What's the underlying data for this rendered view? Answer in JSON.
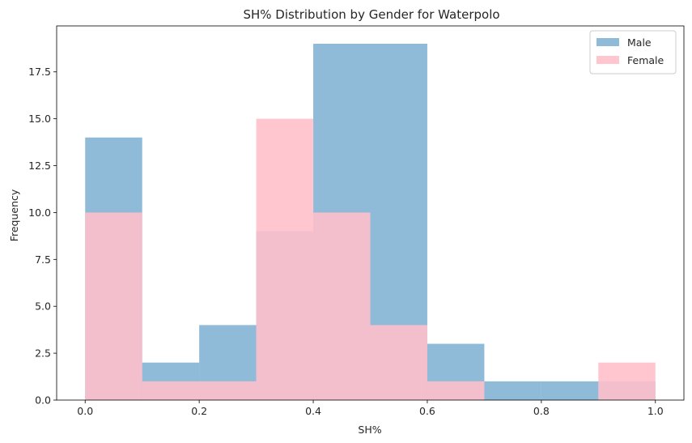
{
  "chart_data": {
    "type": "bar",
    "histogram": true,
    "title": "SH% Distribution by Gender for Waterpolo",
    "xlabel": "SH%",
    "ylabel": "Frequency",
    "xlim": [
      -0.05,
      1.05
    ],
    "ylim": [
      0,
      19.95
    ],
    "xticks": [
      0.0,
      0.2,
      0.4,
      0.6,
      0.8,
      1.0
    ],
    "xtick_labels": [
      "0.0",
      "0.2",
      "0.4",
      "0.6",
      "0.8",
      "1.0"
    ],
    "yticks": [
      0.0,
      2.5,
      5.0,
      7.5,
      10.0,
      12.5,
      15.0,
      17.5
    ],
    "ytick_labels": [
      "0.0",
      "2.5",
      "5.0",
      "7.5",
      "10.0",
      "12.5",
      "15.0",
      "17.5"
    ],
    "bin_edges": [
      0.0,
      0.1,
      0.2,
      0.3,
      0.4,
      0.5,
      0.6,
      0.7,
      0.8,
      0.9,
      1.0
    ],
    "series": [
      {
        "name": "Male",
        "color": "#1f77b4",
        "alpha": 0.5,
        "values": [
          14,
          2,
          4,
          9,
          19,
          19,
          3,
          1,
          1,
          1
        ]
      },
      {
        "name": "Female",
        "color": "#ffc0cb",
        "alpha": 0.9,
        "values": [
          10,
          1,
          1,
          15,
          10,
          4,
          1,
          0,
          0,
          2
        ]
      }
    ],
    "grid": false,
    "legend_position": "top-right"
  }
}
